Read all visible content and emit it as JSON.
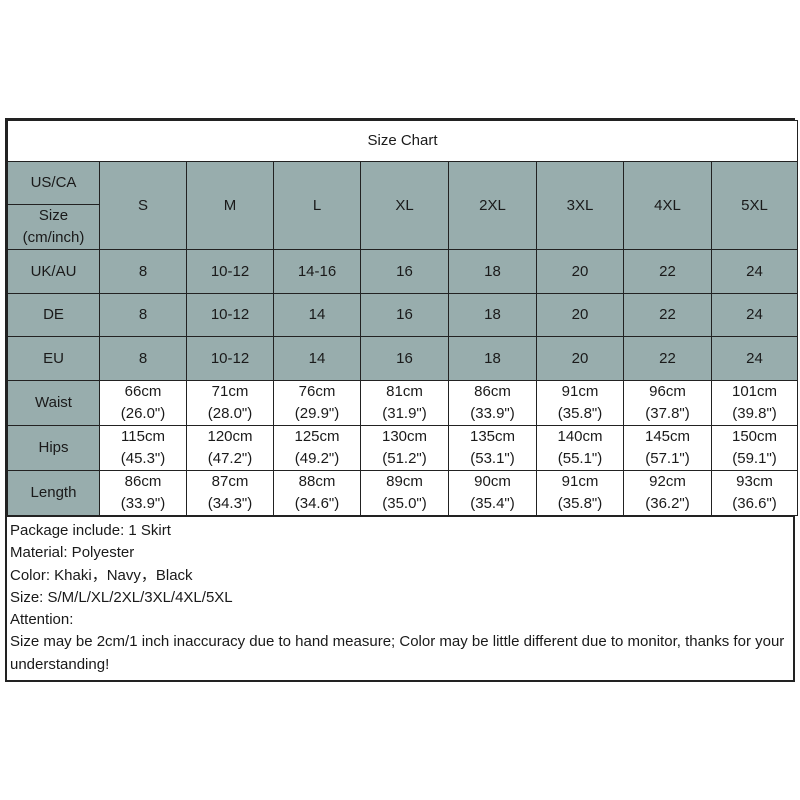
{
  "title": "Size Chart",
  "header": {
    "label_top": "US/CA",
    "label_bottom": "Size (cm/inch)",
    "sizes": [
      "S",
      "M",
      "L",
      "XL",
      "2XL",
      "3XL",
      "4XL",
      "5XL"
    ]
  },
  "conversion_rows": [
    {
      "label": "UK/AU",
      "values": [
        "8",
        "10-12",
        "14-16",
        "16",
        "18",
        "20",
        "22",
        "24"
      ]
    },
    {
      "label": "DE",
      "values": [
        "8",
        "10-12",
        "14",
        "16",
        "18",
        "20",
        "22",
        "24"
      ]
    },
    {
      "label": "EU",
      "values": [
        "8",
        "10-12",
        "14",
        "16",
        "18",
        "20",
        "22",
        "24"
      ]
    }
  ],
  "measure_rows": [
    {
      "label": "Waist",
      "cm": [
        "66cm",
        "71cm",
        "76cm",
        "81cm",
        "86cm",
        "91cm",
        "96cm",
        "101cm"
      ],
      "inch": [
        "(26.0\")",
        "(28.0\")",
        "(29.9\")",
        "(31.9\")",
        "(33.9\")",
        "(35.8\")",
        "(37.8\")",
        "(39.8\")"
      ]
    },
    {
      "label": "Hips",
      "cm": [
        "115cm",
        "120cm",
        "125cm",
        "130cm",
        "135cm",
        "140cm",
        "145cm",
        "150cm"
      ],
      "inch": [
        "(45.3\")",
        "(47.2\")",
        "(49.2\")",
        "(51.2\")",
        "(53.1\")",
        "(55.1\")",
        "(57.1\")",
        "(59.1\")"
      ]
    },
    {
      "label": "Length",
      "cm": [
        "86cm",
        "87cm",
        "88cm",
        "89cm",
        "90cm",
        "91cm",
        "92cm",
        "93cm"
      ],
      "inch": [
        "(33.9\")",
        "(34.3\")",
        "(34.6\")",
        "(35.0\")",
        "(35.4\")",
        "(35.8\")",
        "(36.2\")",
        "(36.6\")"
      ]
    }
  ],
  "notes": [
    "Package include: 1 Skirt",
    "Material: Polyester",
    "Color: Khaki，Navy，Black",
    "Size: S/M/L/XL/2XL/3XL/4XL/5XL",
    "Attention:",
    "Size may be 2cm/1 inch inaccuracy due to hand measure; Color may be little different due to monitor, thanks for your understanding!"
  ],
  "colors": {
    "header_fill": "#98adad",
    "border": "#222222"
  }
}
